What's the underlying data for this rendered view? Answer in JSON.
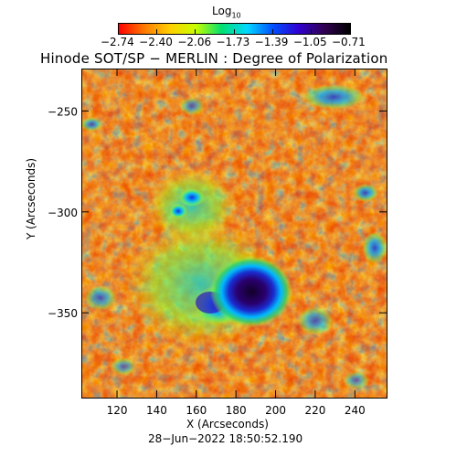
{
  "colorbar": {
    "label_main": "Log",
    "label_sub": "10",
    "ticks": [
      "−2.74",
      "−2.40",
      "−2.06",
      "−1.73",
      "−1.39",
      "−1.05",
      "−0.71"
    ],
    "colors": [
      "#ff0000",
      "#ff7a00",
      "#ffd000",
      "#c8ff00",
      "#00e070",
      "#00d8ff",
      "#0050ff",
      "#3000d0",
      "#300050",
      "#000000"
    ]
  },
  "title": "Hinode SOT/SP − MERLIN : Degree of Polarization",
  "axes": {
    "xlabel": "X (Arcseconds)",
    "ylabel": "Y (Arcseconds)",
    "xticks": [
      {
        "label": "120",
        "value": 120
      },
      {
        "label": "140",
        "value": 140
      },
      {
        "label": "160",
        "value": 160
      },
      {
        "label": "180",
        "value": 180
      },
      {
        "label": "200",
        "value": 200
      },
      {
        "label": "220",
        "value": 220
      },
      {
        "label": "240",
        "value": 240
      }
    ],
    "yticks": [
      {
        "label": "−250",
        "value": -250
      },
      {
        "label": "−300",
        "value": -300
      },
      {
        "label": "−350",
        "value": -350
      }
    ],
    "xlim": [
      102,
      256
    ],
    "ylim": [
      -392,
      -229
    ]
  },
  "timestamp": "28−Jun−2022 18:50:52.190"
}
